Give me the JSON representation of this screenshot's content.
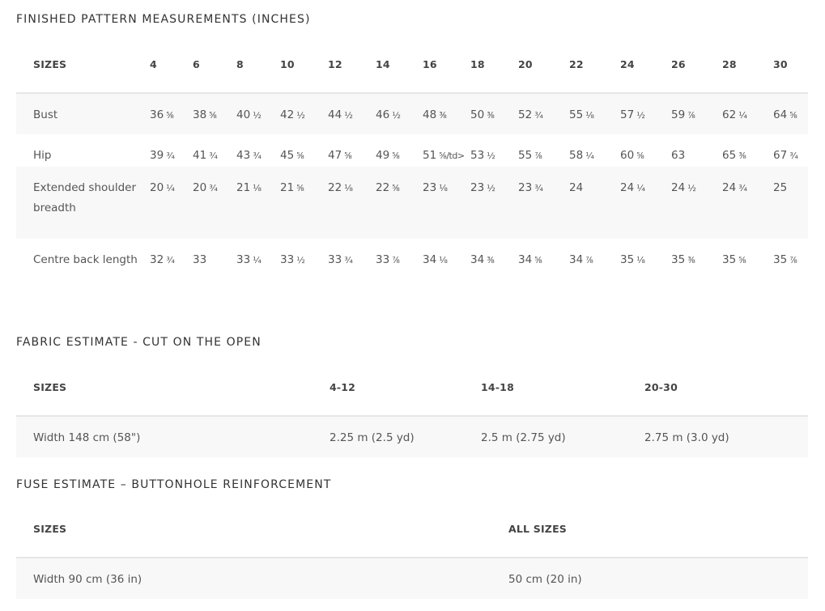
{
  "measurements": {
    "title": "FINISHED PATTERN MEASUREMENTS (INCHES)",
    "header_label": "SIZES",
    "sizes": [
      "4",
      "6",
      "8",
      "10",
      "12",
      "14",
      "16",
      "18",
      "20",
      "22",
      "24",
      "26",
      "28",
      "30"
    ],
    "rows": [
      {
        "label": "Bust",
        "values": [
          "36",
          "38",
          "40",
          "42",
          "44",
          "46",
          "48",
          "50",
          "52",
          "55",
          "57",
          "59",
          "62",
          "64"
        ],
        "fracs": [
          "⁵⁄₈",
          "⁵⁄₈",
          "½",
          "½",
          "½",
          "½",
          "³⁄₈",
          "³⁄₈",
          "¾",
          "⅛",
          "½",
          "⁷⁄₈",
          "¼",
          "⁵⁄₈"
        ]
      },
      {
        "label": "Hip",
        "values": [
          "39",
          "41",
          "43",
          "45",
          "47",
          "49",
          "51",
          "53",
          "55",
          "58",
          "60",
          "63",
          "65",
          "67"
        ],
        "fracs": [
          "¾",
          "¾",
          "¾",
          "⁵⁄₈",
          "⁵⁄₈",
          "⁵⁄₈",
          "⁵⁄₈/td>",
          "½",
          "⁷⁄₈",
          "¼",
          "⁵⁄₈",
          "",
          "³⁄₈",
          "¾"
        ]
      },
      {
        "label": "Extended shoulder breadth",
        "values": [
          "20",
          "20",
          "21",
          "21",
          "22",
          "22",
          "23",
          "23",
          "23",
          "24",
          "24",
          "24",
          "24",
          "25"
        ],
        "fracs": [
          "¼",
          "¾",
          "⅛",
          "⁵⁄₈",
          "⅛",
          "⁵⁄₈",
          "⅛",
          "½",
          "¾",
          "",
          "¼",
          "½",
          "¾",
          ""
        ]
      },
      {
        "label": "Centre back length",
        "values": [
          "32",
          "33",
          "33",
          "33",
          "33",
          "33",
          "34",
          "34",
          "34",
          "34",
          "35",
          "35",
          "35",
          "35"
        ],
        "fracs": [
          "¾",
          "",
          "¼",
          "½",
          "¾",
          "⁷⁄₈",
          "⅛",
          "³⁄₈",
          "⁵⁄₈",
          "⁷⁄₈",
          "⅛",
          "³⁄₈",
          "⁵⁄₈",
          "⁷⁄₈"
        ]
      }
    ]
  },
  "fabric": {
    "title": "FABRIC ESTIMATE - CUT ON THE OPEN",
    "header_label": "SIZES",
    "columns": [
      "4-12",
      "14-18",
      "20-30"
    ],
    "row": {
      "label": "Width 148 cm (58\")",
      "values": [
        "2.25 m (2.5 yd)",
        "2.5 m (2.75 yd)",
        "2.75 m (3.0 yd)"
      ]
    }
  },
  "fuse": {
    "title": "FUSE ESTIMATE – BUTTONHOLE REINFORCEMENT",
    "header_label": "SIZES",
    "column": "ALL SIZES",
    "row": {
      "label": "Width 90 cm (36 in)",
      "value": "50 cm (20 in)"
    }
  }
}
